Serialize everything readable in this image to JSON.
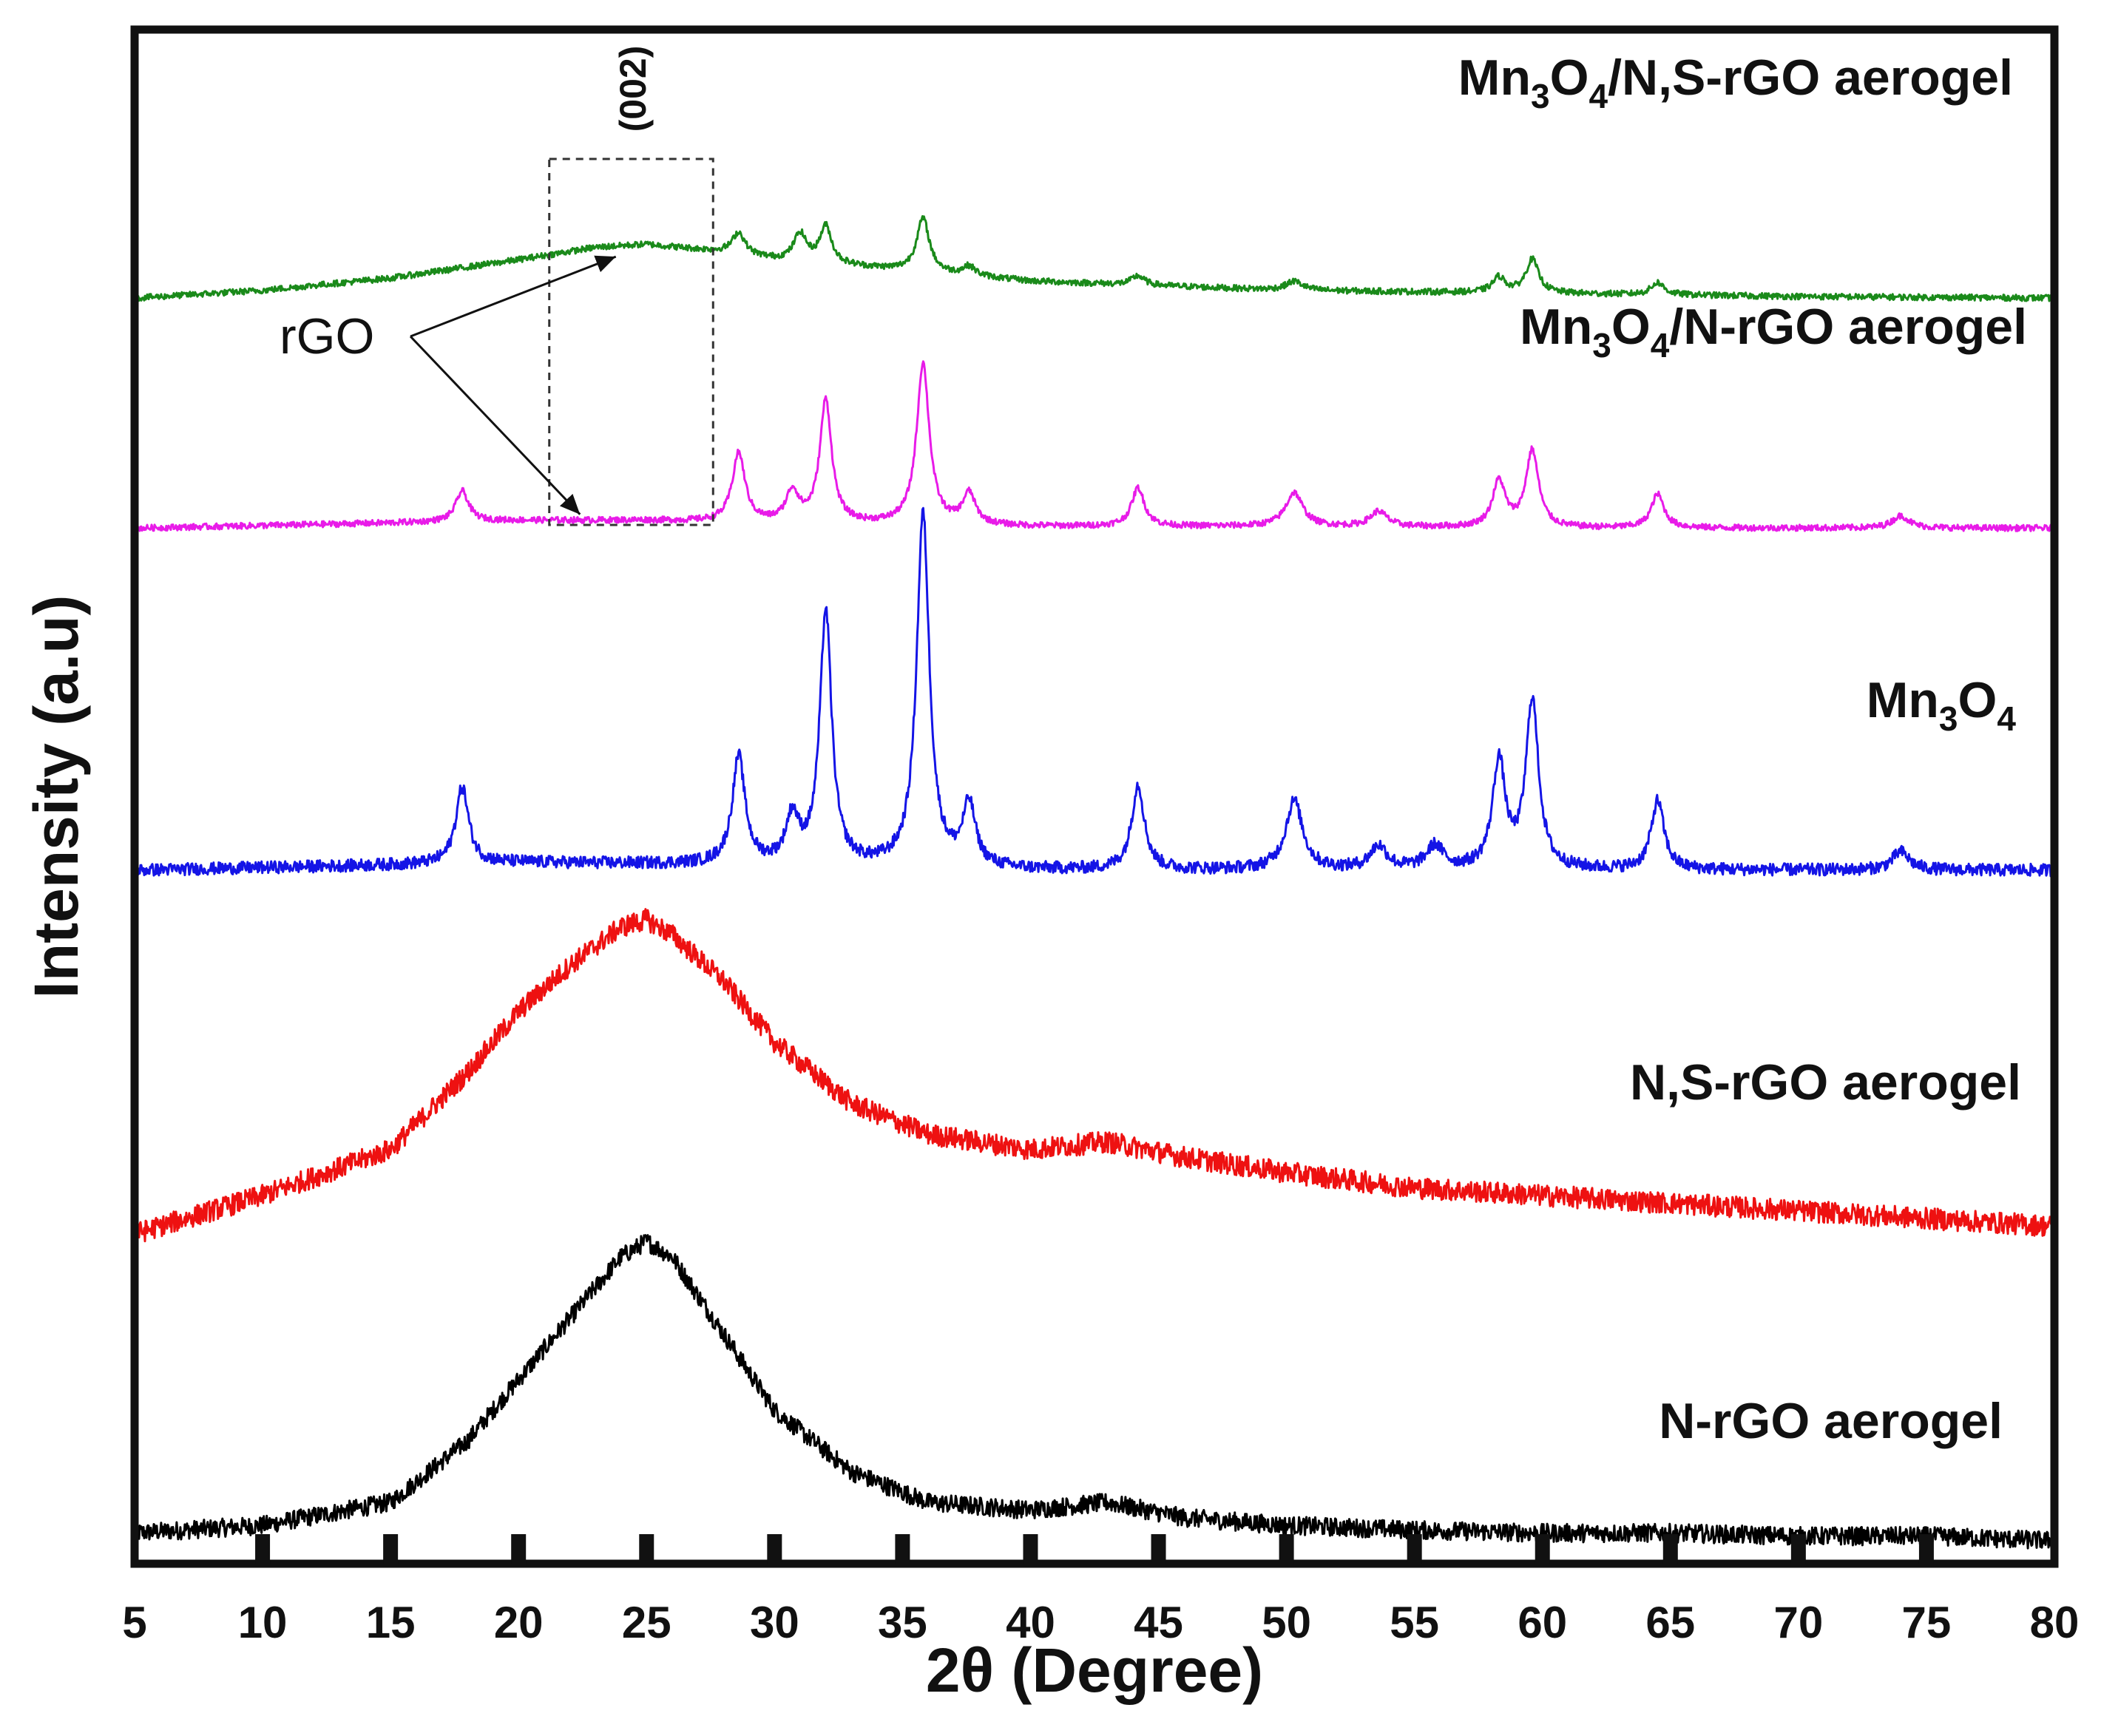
{
  "chart_data": {
    "type": "line",
    "title": "",
    "xlabel": "2θ (Degree)",
    "ylabel": "Intensity (a.u)",
    "xlim": [
      5,
      80
    ],
    "ylim": [
      0,
      1
    ],
    "xticks": [
      "5",
      "10",
      "15",
      "20",
      "25",
      "30",
      "35",
      "40",
      "45",
      "50",
      "55",
      "60",
      "65",
      "70",
      "75",
      "80"
    ],
    "y_ticks_shown": false,
    "grid": false,
    "colors": {
      "axis": "#111111",
      "N-rGO aerogel": "#000000",
      "N,S-rGO aerogel": "#ee1111",
      "Mn3O4": "#1414e6",
      "Mn3O4/N-rGO aerogel": "#e81be8",
      "Mn3O4/N,S-rGO aerogel": "#1a8a1a"
    },
    "series": [
      {
        "name": "N-rGO aerogel",
        "label_parts": [
          {
            "t": "N-rGO aerogel",
            "sub": false
          }
        ],
        "baseline": 0.018,
        "noise": 0.006,
        "points": [
          [
            5,
            0.02
          ],
          [
            10,
            0.025
          ],
          [
            15,
            0.04
          ],
          [
            18,
            0.08
          ],
          [
            20,
            0.12
          ],
          [
            22,
            0.16
          ],
          [
            24,
            0.2
          ],
          [
            25,
            0.21
          ],
          [
            26,
            0.2
          ],
          [
            28,
            0.15
          ],
          [
            30,
            0.1
          ],
          [
            33,
            0.06
          ],
          [
            36,
            0.04
          ],
          [
            40,
            0.035
          ],
          [
            43,
            0.04
          ],
          [
            46,
            0.03
          ],
          [
            50,
            0.025
          ],
          [
            55,
            0.022
          ],
          [
            60,
            0.02
          ],
          [
            65,
            0.02
          ],
          [
            70,
            0.018
          ],
          [
            75,
            0.018
          ],
          [
            80,
            0.015
          ]
        ],
        "peaks": []
      },
      {
        "name": "N,S-rGO aerogel",
        "label_parts": [
          {
            "t": "N,S-rGO aerogel",
            "sub": false
          }
        ],
        "baseline": 0.21,
        "noise": 0.007,
        "points": [
          [
            5,
            0.215
          ],
          [
            10,
            0.24
          ],
          [
            15,
            0.27
          ],
          [
            18,
            0.32
          ],
          [
            20,
            0.36
          ],
          [
            22,
            0.39
          ],
          [
            24,
            0.415
          ],
          [
            25,
            0.42
          ],
          [
            26,
            0.41
          ],
          [
            28,
            0.38
          ],
          [
            30,
            0.34
          ],
          [
            33,
            0.3
          ],
          [
            36,
            0.28
          ],
          [
            40,
            0.27
          ],
          [
            43,
            0.275
          ],
          [
            46,
            0.265
          ],
          [
            50,
            0.255
          ],
          [
            55,
            0.245
          ],
          [
            60,
            0.24
          ],
          [
            65,
            0.235
          ],
          [
            70,
            0.23
          ],
          [
            75,
            0.225
          ],
          [
            80,
            0.22
          ]
        ],
        "peaks": []
      },
      {
        "name": "Mn3O4",
        "label_parts": [
          {
            "t": "Mn",
            "sub": false
          },
          {
            "t": "3",
            "sub": true
          },
          {
            "t": "O",
            "sub": false
          },
          {
            "t": "4",
            "sub": true
          }
        ],
        "baseline": 0.452,
        "noise": 0.004,
        "points": [
          [
            5,
            0.452
          ],
          [
            20,
            0.457
          ],
          [
            25,
            0.456
          ],
          [
            30,
            0.455
          ],
          [
            40,
            0.452
          ],
          [
            50,
            0.452
          ],
          [
            60,
            0.452
          ],
          [
            70,
            0.452
          ],
          [
            80,
            0.452
          ]
        ],
        "peaks": [
          [
            17.8,
            0.05,
            0.3
          ],
          [
            28.6,
            0.07,
            0.3
          ],
          [
            30.7,
            0.03,
            0.3
          ],
          [
            32.0,
            0.165,
            0.28
          ],
          [
            35.8,
            0.23,
            0.3
          ],
          [
            37.6,
            0.04,
            0.3
          ],
          [
            44.2,
            0.055,
            0.3
          ],
          [
            50.3,
            0.045,
            0.4
          ],
          [
            53.6,
            0.015,
            0.4
          ],
          [
            55.8,
            0.015,
            0.4
          ],
          [
            58.3,
            0.07,
            0.3
          ],
          [
            59.6,
            0.11,
            0.3
          ],
          [
            64.5,
            0.045,
            0.3
          ],
          [
            74.0,
            0.012,
            0.4
          ]
        ]
      },
      {
        "name": "Mn3O4/N-rGO aerogel",
        "label_parts": [
          {
            "t": "Mn",
            "sub": false
          },
          {
            "t": "3",
            "sub": true
          },
          {
            "t": "O",
            "sub": false
          },
          {
            "t": "4",
            "sub": true
          },
          {
            "t": "/N-rGO aerogel",
            "sub": false
          }
        ],
        "baseline": 0.675,
        "noise": 0.002,
        "points": [
          [
            5,
            0.675
          ],
          [
            20,
            0.68
          ],
          [
            25,
            0.68
          ],
          [
            30,
            0.678
          ],
          [
            40,
            0.676
          ],
          [
            50,
            0.676
          ],
          [
            60,
            0.675
          ],
          [
            70,
            0.675
          ],
          [
            80,
            0.675
          ]
        ],
        "peaks": [
          [
            17.8,
            0.02,
            0.3
          ],
          [
            28.6,
            0.045,
            0.3
          ],
          [
            30.7,
            0.02,
            0.3
          ],
          [
            32.0,
            0.08,
            0.28
          ],
          [
            35.8,
            0.105,
            0.3
          ],
          [
            37.6,
            0.02,
            0.3
          ],
          [
            44.2,
            0.025,
            0.3
          ],
          [
            50.3,
            0.022,
            0.4
          ],
          [
            53.6,
            0.01,
            0.4
          ],
          [
            58.3,
            0.03,
            0.3
          ],
          [
            59.6,
            0.05,
            0.3
          ],
          [
            64.5,
            0.022,
            0.3
          ],
          [
            74.0,
            0.008,
            0.4
          ]
        ]
      },
      {
        "name": "Mn3O4/N,S-rGO aerogel",
        "label_parts": [
          {
            "t": "Mn",
            "sub": false
          },
          {
            "t": "3",
            "sub": true
          },
          {
            "t": "O",
            "sub": false
          },
          {
            "t": "4",
            "sub": true
          },
          {
            "t": "/N,S-rGO aerogel",
            "sub": false
          }
        ],
        "baseline": 0.825,
        "noise": 0.002,
        "points": [
          [
            5,
            0.825
          ],
          [
            10,
            0.83
          ],
          [
            15,
            0.838
          ],
          [
            20,
            0.85
          ],
          [
            23,
            0.858
          ],
          [
            25,
            0.86
          ],
          [
            28,
            0.855
          ],
          [
            30,
            0.85
          ],
          [
            35,
            0.843
          ],
          [
            40,
            0.836
          ],
          [
            50,
            0.83
          ],
          [
            60,
            0.828
          ],
          [
            70,
            0.826
          ],
          [
            80,
            0.825
          ]
        ],
        "peaks": [
          [
            28.6,
            0.014,
            0.3
          ],
          [
            31.0,
            0.018,
            0.3
          ],
          [
            32.0,
            0.024,
            0.28
          ],
          [
            35.8,
            0.035,
            0.3
          ],
          [
            37.6,
            0.006,
            0.3
          ],
          [
            44.2,
            0.006,
            0.3
          ],
          [
            50.3,
            0.006,
            0.4
          ],
          [
            58.3,
            0.01,
            0.3
          ],
          [
            59.6,
            0.022,
            0.3
          ],
          [
            64.5,
            0.008,
            0.3
          ]
        ]
      }
    ],
    "annotations": {
      "rgo_label": "rGO",
      "peak_label": "(002)",
      "box_x_range": [
        21.2,
        27.6
      ],
      "arrow_targets": [
        [
          23.8,
          0.852
        ],
        [
          22.4,
          0.684
        ]
      ]
    }
  }
}
